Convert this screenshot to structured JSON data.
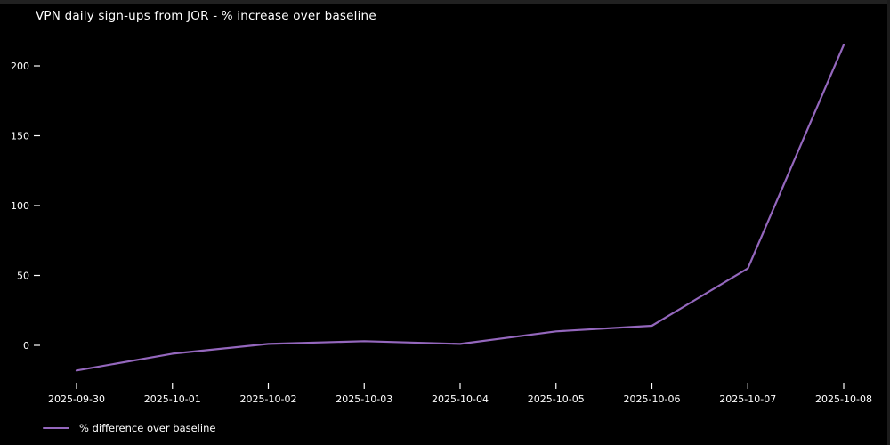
{
  "chart": {
    "title": "VPN daily sign-ups from JOR - % increase over baseline",
    "background_color": "#000000",
    "text_color": "#ffffff",
    "line_color": "#9467bd"
  },
  "chart_data": {
    "type": "line",
    "title": "VPN daily sign-ups from JOR - % increase over baseline",
    "x": [
      "2025-09-30",
      "2025-10-01",
      "2025-10-02",
      "2025-10-03",
      "2025-10-04",
      "2025-10-05",
      "2025-10-06",
      "2025-10-07",
      "2025-10-08"
    ],
    "series": [
      {
        "name": "% difference over baseline",
        "color": "#9467bd",
        "values": [
          -18,
          -6,
          1,
          3,
          1,
          10,
          14,
          55,
          215
        ]
      }
    ],
    "xlabel": "",
    "ylabel": "",
    "yticks": [
      0,
      50,
      100,
      150,
      200
    ],
    "ylim": [
      -30,
      230
    ],
    "grid": false,
    "legend_position": "lower-left",
    "legend_entries": [
      "% difference over baseline"
    ]
  }
}
